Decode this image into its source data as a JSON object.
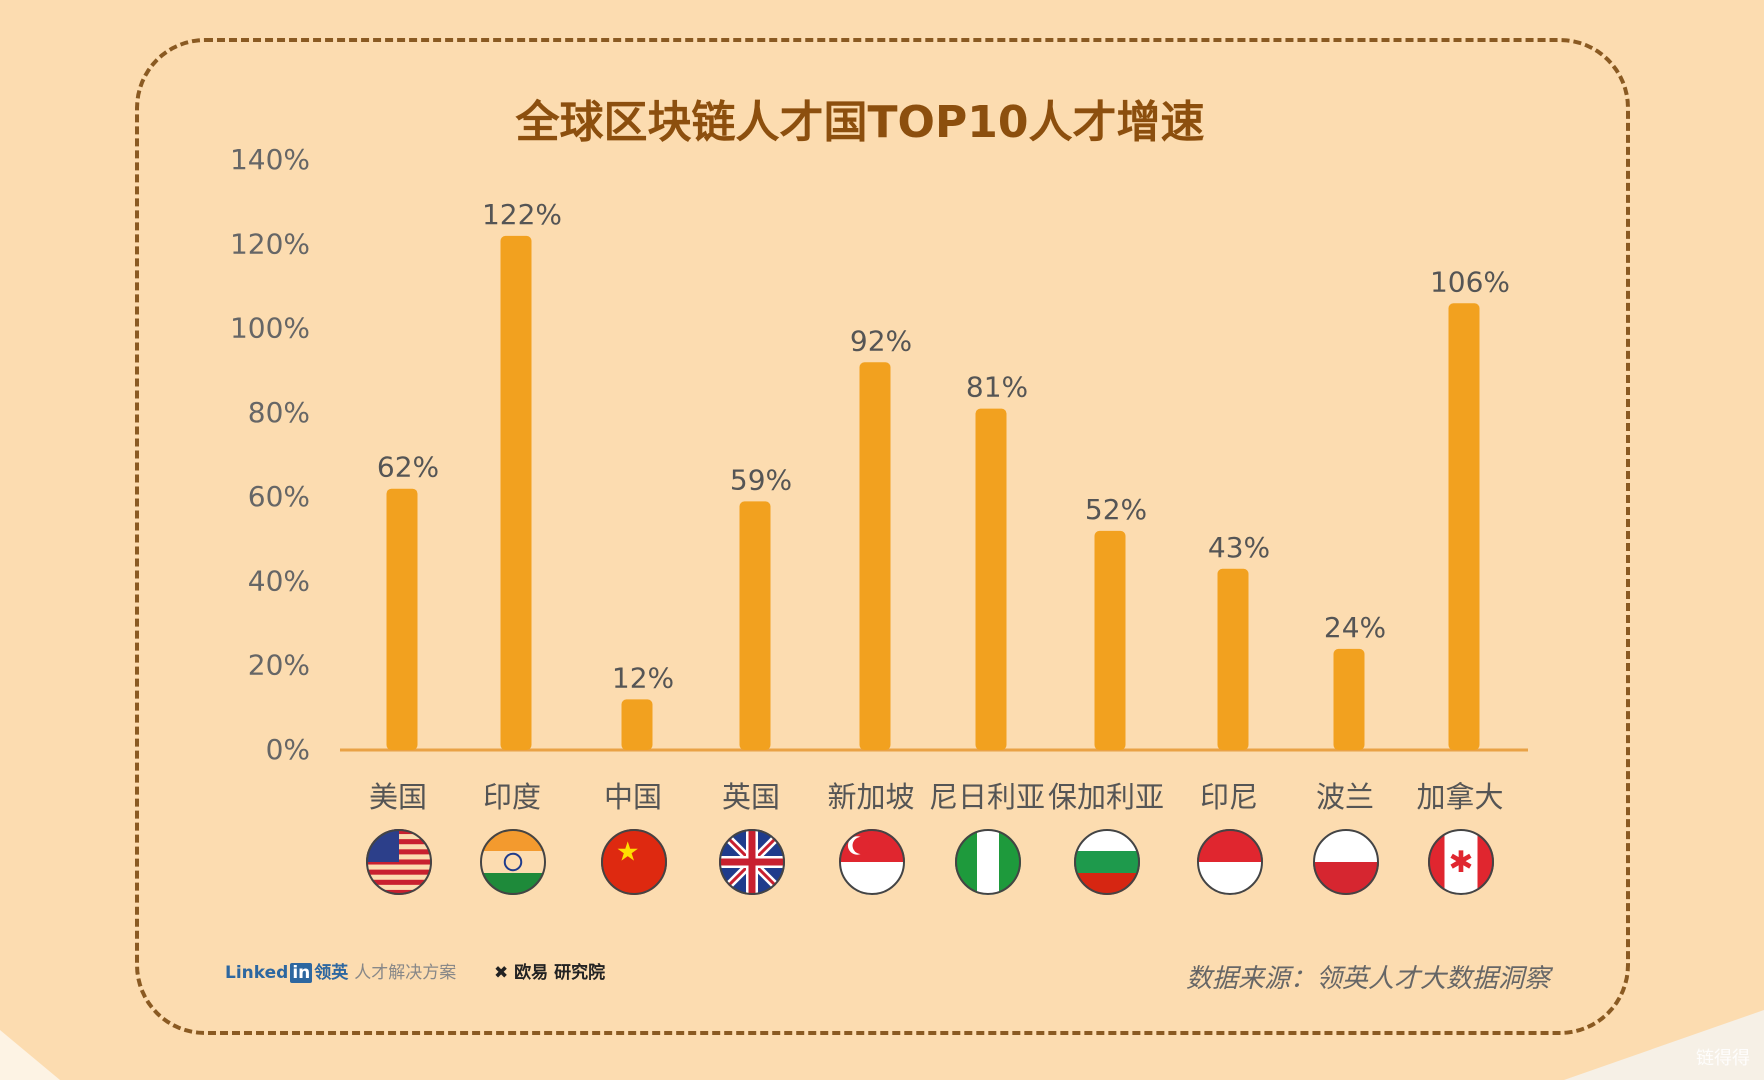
{
  "chart_data": {
    "type": "bar",
    "title": "全球区块链人才国TOP10人才增速",
    "categories": [
      "美国",
      "印度",
      "中国",
      "英国",
      "新加坡",
      "尼日利亚",
      "保加利亚",
      "印尼",
      "波兰",
      "加拿大"
    ],
    "values": [
      62,
      122,
      12,
      59,
      92,
      81,
      52,
      43,
      24,
      106
    ],
    "data_labels": [
      "62%",
      "122%",
      "12%",
      "59%",
      "92%",
      "81%",
      "52%",
      "43%",
      "24%",
      "106%"
    ],
    "flags": [
      "us-flag-icon",
      "india-flag-icon",
      "china-flag-icon",
      "uk-flag-icon",
      "singapore-flag-icon",
      "nigeria-flag-icon",
      "bulgaria-flag-icon",
      "indonesia-flag-icon",
      "poland-flag-icon",
      "canada-flag-icon"
    ],
    "ylim": [
      0,
      140
    ],
    "yticks": [
      "0%",
      "20%",
      "40%",
      "60%",
      "80%",
      "100%",
      "120%",
      "140%"
    ],
    "xlabel": "",
    "ylabel": "",
    "grid": false,
    "bar_color": "#f2a11f",
    "axis_color": "#e9a246"
  },
  "footer": {
    "linkedin_logo": "Linked",
    "linkedin_in": "in",
    "linkedin_cn": "领英",
    "linkedin_sub": "人才解决方案",
    "okex": "欧易 研究院",
    "source": "数据来源：领英人才大数据洞察",
    "watermark": "链得得"
  }
}
